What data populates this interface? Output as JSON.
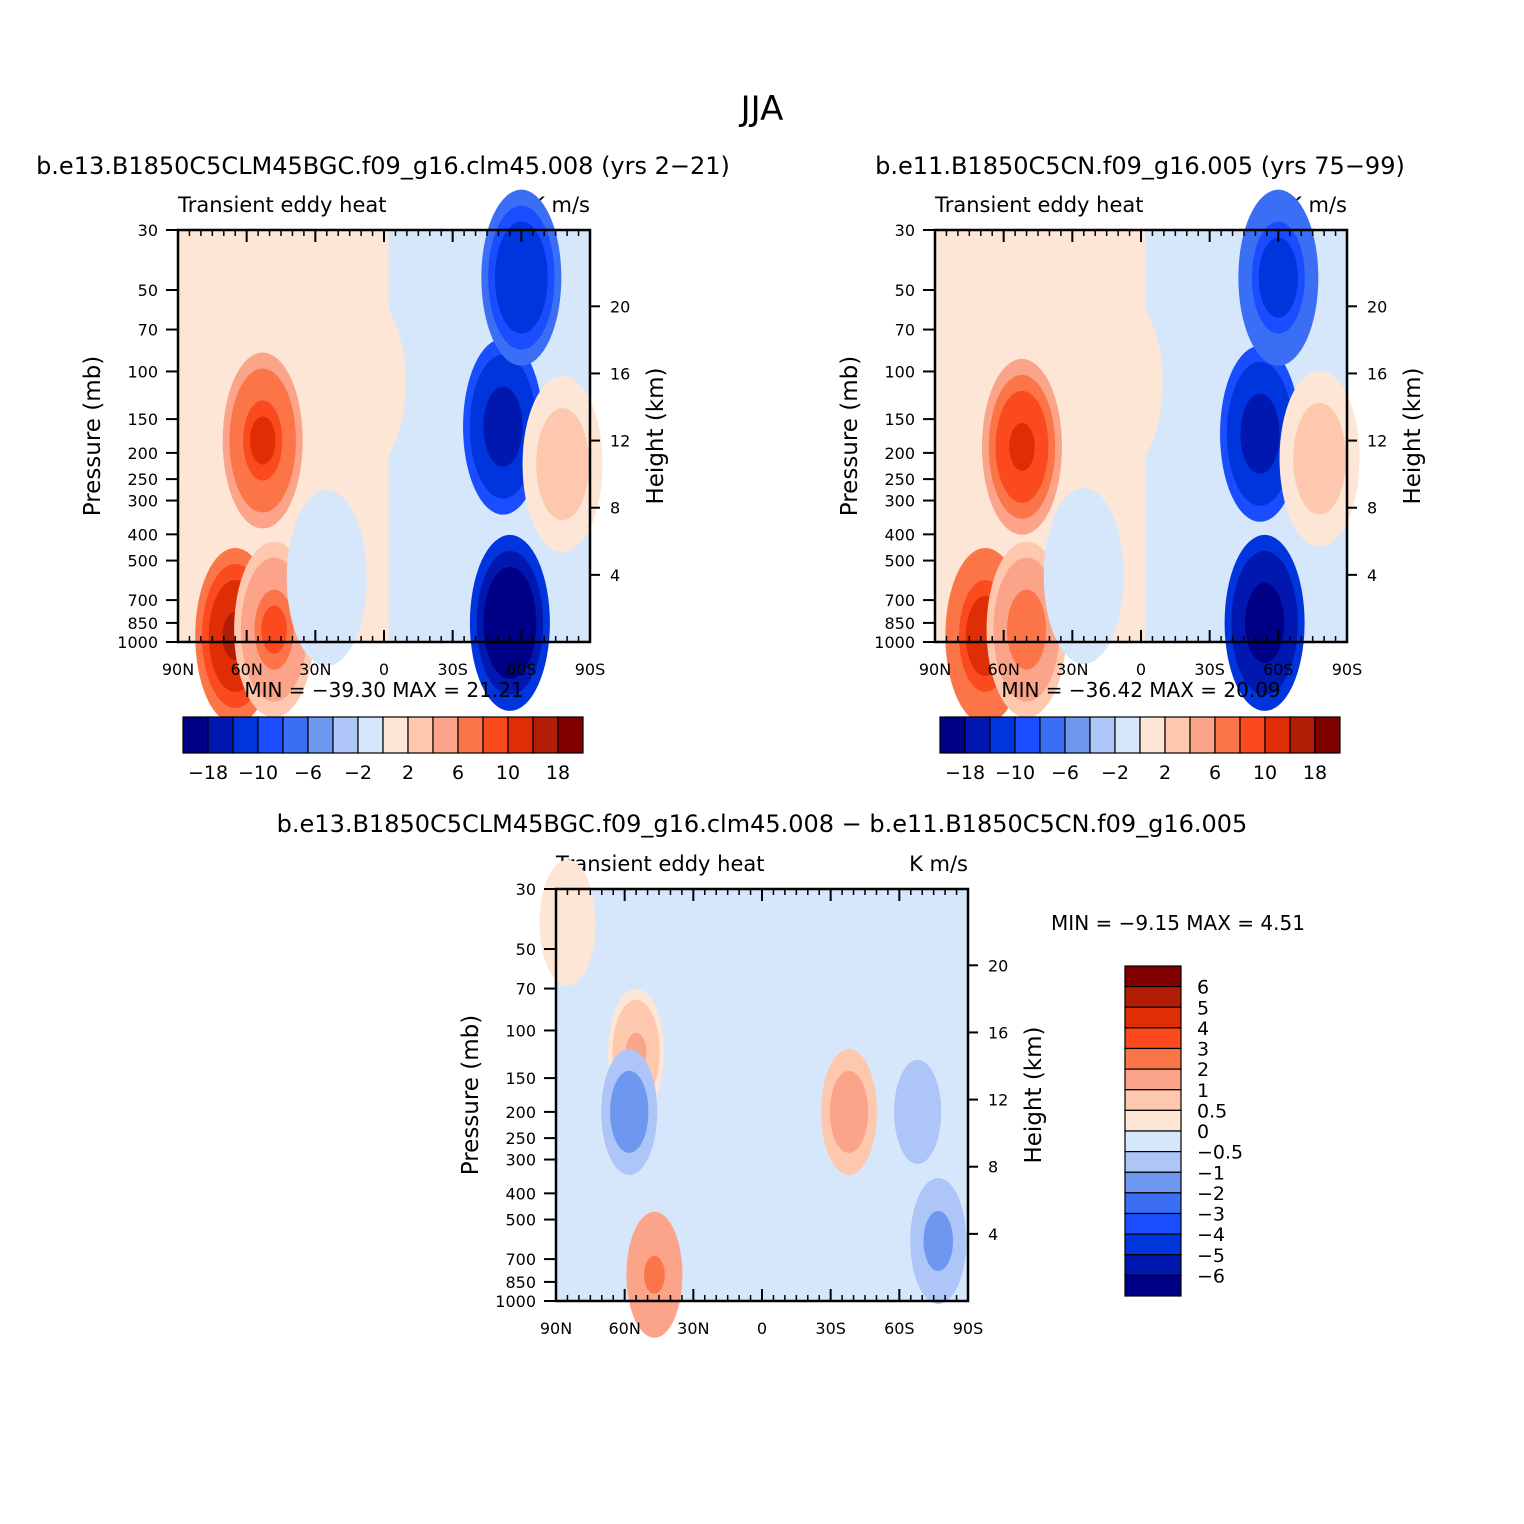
{
  "figure_title": "JJA",
  "chart_data": [
    {
      "type": "contour",
      "panel": "model",
      "title": "b.e13.B1850C5CLM45BGC.f09_g16.clm45.008 (yrs 2−21)",
      "left_string": "Transient  eddy  heat",
      "right_string": "K  m/s",
      "ylabel": "Pressure (mb)",
      "ylabel_right": "Height (km)",
      "x_ticks": [
        "90N",
        "60N",
        "30N",
        "0",
        "30S",
        "60S",
        "90S"
      ],
      "x_values": [
        90,
        60,
        30,
        0,
        -30,
        -60,
        -90
      ],
      "y_ticks": [
        "30",
        "50",
        "70",
        "100",
        "150",
        "200",
        "250",
        "300",
        "400",
        "500",
        "700",
        "850",
        "1000"
      ],
      "y_values": [
        30,
        50,
        70,
        100,
        150,
        200,
        250,
        300,
        400,
        500,
        700,
        850,
        1000
      ],
      "height_ticks": [
        "20",
        "16",
        "12",
        "8",
        "4"
      ],
      "height_values": [
        20,
        16,
        12,
        8,
        4
      ],
      "minmax_text": "MIN  =  −39.30    MAX  =    21.21",
      "min": -39.3,
      "max": 21.21,
      "colorbar_labels": [
        "−18",
        "−10",
        "−6",
        "−2",
        "2",
        "6",
        "10",
        "18"
      ],
      "features": [
        {
          "lat": 53,
          "p": 180,
          "v": 10
        },
        {
          "lat": 65,
          "p": 950,
          "v": 14
        },
        {
          "lat": 48,
          "p": 900,
          "v": 8
        },
        {
          "lat": -55,
          "p": 850,
          "v": -25
        },
        {
          "lat": -52,
          "p": 160,
          "v": -18
        },
        {
          "lat": -60,
          "p": 45,
          "v": -14
        },
        {
          "lat": -78,
          "p": 220,
          "v": 3
        },
        {
          "lat": 8,
          "p": 110,
          "v": 1.5
        },
        {
          "lat": 25,
          "p": 580,
          "v": -1
        }
      ]
    },
    {
      "type": "contour",
      "panel": "control",
      "title": "b.e11.B1850C5CN.f09_g16.005 (yrs 75−99)",
      "left_string": "Transient  eddy  heat",
      "right_string": "K  m/s",
      "ylabel": "Pressure (mb)",
      "ylabel_right": "Height (km)",
      "x_ticks": [
        "90N",
        "60N",
        "30N",
        "0",
        "30S",
        "60S",
        "90S"
      ],
      "x_values": [
        90,
        60,
        30,
        0,
        -30,
        -60,
        -90
      ],
      "y_ticks": [
        "30",
        "50",
        "70",
        "100",
        "150",
        "200",
        "250",
        "300",
        "400",
        "500",
        "700",
        "850",
        "1000"
      ],
      "y_values": [
        30,
        50,
        70,
        100,
        150,
        200,
        250,
        300,
        400,
        500,
        700,
        850,
        1000
      ],
      "height_ticks": [
        "20",
        "16",
        "12",
        "8",
        "4"
      ],
      "height_values": [
        20,
        16,
        12,
        8,
        4
      ],
      "minmax_text": "MIN  =  −36.42    MAX  =    20.09",
      "min": -36.42,
      "max": 20.09,
      "colorbar_labels": [
        "−18",
        "−10",
        "−6",
        "−2",
        "2",
        "6",
        "10",
        "18"
      ],
      "features": [
        {
          "lat": 52,
          "p": 190,
          "v": 11
        },
        {
          "lat": 68,
          "p": 950,
          "v": 13
        },
        {
          "lat": 50,
          "p": 900,
          "v": 7
        },
        {
          "lat": -54,
          "p": 850,
          "v": -24
        },
        {
          "lat": -52,
          "p": 170,
          "v": -17
        },
        {
          "lat": -60,
          "p": 45,
          "v": -13
        },
        {
          "lat": -78,
          "p": 210,
          "v": 3
        },
        {
          "lat": 8,
          "p": 110,
          "v": 1.5
        },
        {
          "lat": 25,
          "p": 570,
          "v": -1
        }
      ]
    },
    {
      "type": "contour",
      "panel": "difference",
      "title": "b.e13.B1850C5CLM45BGC.f09_g16.clm45.008  −  b.e11.B1850C5CN.f09_g16.005",
      "left_string": "Transient  eddy  heat",
      "right_string": "K  m/s",
      "ylabel": "Pressure (mb)",
      "ylabel_right": "Height (km)",
      "x_ticks": [
        "90N",
        "60N",
        "30N",
        "0",
        "30S",
        "60S",
        "90S"
      ],
      "x_values": [
        90,
        60,
        30,
        0,
        -30,
        -60,
        -90
      ],
      "y_ticks": [
        "30",
        "50",
        "70",
        "100",
        "150",
        "200",
        "250",
        "300",
        "400",
        "500",
        "700",
        "850",
        "1000"
      ],
      "y_values": [
        30,
        50,
        70,
        100,
        150,
        200,
        250,
        300,
        400,
        500,
        700,
        850,
        1000
      ],
      "height_ticks": [
        "20",
        "16",
        "12",
        "8",
        "4"
      ],
      "height_values": [
        20,
        16,
        12,
        8,
        4
      ],
      "minmax_text": "MIN  =    −9.15    MAX  =      4.51",
      "min": -9.15,
      "max": 4.51,
      "colorbar_labels": [
        "6",
        "5",
        "4",
        "3",
        "2",
        "1",
        "0.5",
        "0",
        "−0.5",
        "−1",
        "−2",
        "−3",
        "−4",
        "−5",
        "−6"
      ],
      "features": [
        {
          "lat": 55,
          "p": 120,
          "v": 1.0
        },
        {
          "lat": 47,
          "p": 800,
          "v": 2.2
        },
        {
          "lat": -38,
          "p": 200,
          "v": 1.6
        },
        {
          "lat": 58,
          "p": 200,
          "v": -1.5
        },
        {
          "lat": -68,
          "p": 200,
          "v": -1.0
        },
        {
          "lat": -77,
          "p": 600,
          "v": -1.3
        },
        {
          "lat": 85,
          "p": 40,
          "v": 0.3
        },
        {
          "lat": 12,
          "p": 160,
          "v": -0.4
        },
        {
          "lat": -15,
          "p": 500,
          "v": -0.4
        }
      ]
    }
  ],
  "colors": {
    "scale": [
      "#000086",
      "#0018b0",
      "#0035dd",
      "#1a4dff",
      "#3a6ef5",
      "#6e97f0",
      "#aec6f7",
      "#d6e7fb",
      "#fee6d6",
      "#fec8ae",
      "#fca489",
      "#fc7548",
      "#fa4a1e",
      "#df2e05",
      "#b21d06",
      "#800000"
    ],
    "neutral": "#ffffff"
  }
}
